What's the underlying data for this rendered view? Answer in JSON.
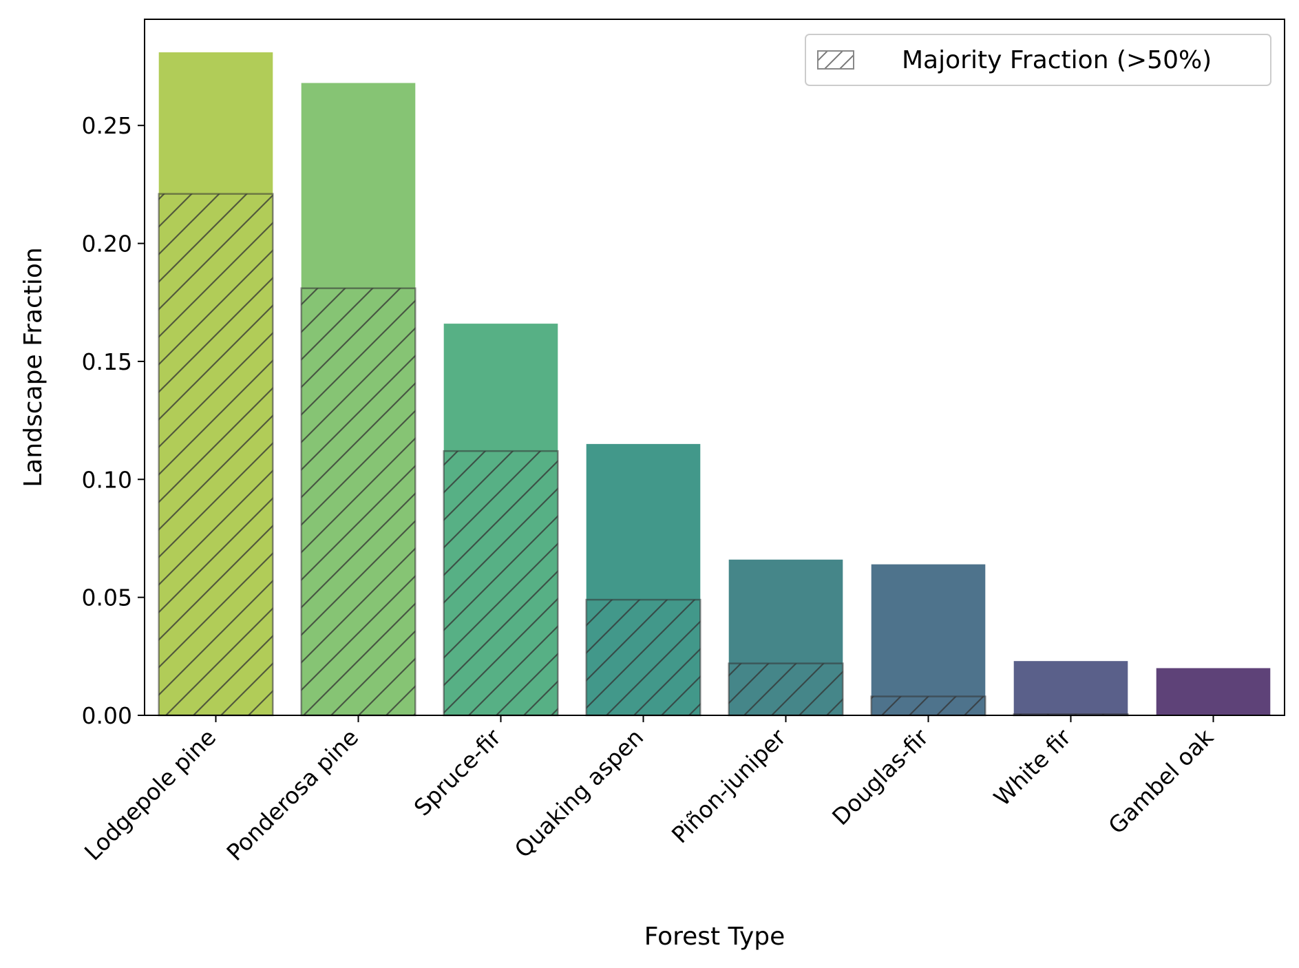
{
  "chart_data": {
    "type": "bar",
    "title": "",
    "xlabel": "Forest Type",
    "ylabel": "Landscape Fraction",
    "ylim": [
      0,
      0.295
    ],
    "yticks": [
      0.0,
      0.05,
      0.1,
      0.15,
      0.2,
      0.25
    ],
    "ytick_labels": [
      "0.00",
      "0.05",
      "0.10",
      "0.15",
      "0.20",
      "0.25"
    ],
    "grid": false,
    "legend_position": "top-right",
    "categories": [
      "Lodgepole pine",
      "Ponderosa pine",
      "Spruce-fir",
      "Quaking aspen",
      "Piñon-juniper",
      "Douglas-fir",
      "White fir",
      "Gambel oak"
    ],
    "series": [
      {
        "values": [
          0.281,
          0.268,
          0.166,
          0.115,
          0.066,
          0.064,
          0.023,
          0.02
        ],
        "colors": [
          "#b1cc58",
          "#86c474",
          "#57b085",
          "#42988a",
          "#458689",
          "#4e738c",
          "#5a608a",
          "#5e4278"
        ]
      },
      {
        "name": "Majority Fraction (>50%)",
        "hatched": true,
        "values": [
          0.221,
          0.181,
          0.112,
          0.049,
          0.022,
          0.008,
          0.0005,
          0.0
        ]
      }
    ]
  }
}
